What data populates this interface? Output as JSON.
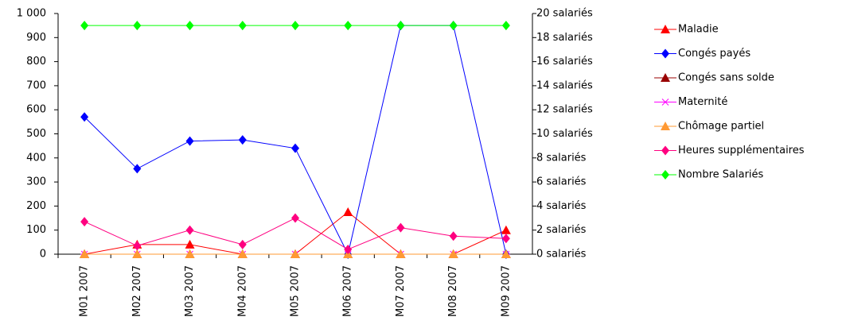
{
  "chart_data": {
    "type": "line",
    "categories": [
      "M01  2007",
      "M02  2007",
      "M03  2007",
      "M04  2007",
      "M05  2007",
      "M06  2007",
      "M07  2007",
      "M08  2007",
      "M09  2007"
    ],
    "ylim": [
      0,
      1000
    ],
    "yticks": [
      0,
      100,
      200,
      300,
      400,
      500,
      600,
      700,
      800,
      900,
      {
        "value": 1000,
        "label": "1 000"
      }
    ],
    "y2lim": [
      0,
      20
    ],
    "y2ticks": [
      {
        "value": 0,
        "label": "0 salariés"
      },
      {
        "value": 2,
        "label": "2 salariés"
      },
      {
        "value": 4,
        "label": "4 salariés"
      },
      {
        "value": 6,
        "label": "6 salariés"
      },
      {
        "value": 8,
        "label": "8 salariés"
      },
      {
        "value": 10,
        "label": "10 salariés"
      },
      {
        "value": 12,
        "label": "12 salariés"
      },
      {
        "value": 14,
        "label": "14 salariés"
      },
      {
        "value": 16,
        "label": "16 salariés"
      },
      {
        "value": 18,
        "label": "18 salariés"
      },
      {
        "value": 20,
        "label": "20 salariés"
      }
    ],
    "legend": "right",
    "series": [
      {
        "name": "Maladie",
        "color": "#ff0000",
        "marker": "triangle",
        "values": [
          0,
          40,
          40,
          0,
          0,
          175,
          0,
          0,
          100
        ]
      },
      {
        "name": "Congés payés",
        "color": "#0000ff",
        "marker": "diamond",
        "values": [
          570,
          355,
          470,
          475,
          440,
          0,
          950,
          950,
          0
        ]
      },
      {
        "name": "Congés sans solde",
        "color": "#990000",
        "marker": "triangle",
        "values": [
          0,
          0,
          0,
          0,
          0,
          0,
          0,
          0,
          0
        ]
      },
      {
        "name": "Maternité",
        "color": "#ff00ff",
        "marker": "cross",
        "values": [
          0,
          0,
          0,
          0,
          0,
          0,
          0,
          0,
          0
        ]
      },
      {
        "name": "Chômage  partiel",
        "color": "#ff9933",
        "marker": "triangle",
        "values": [
          0,
          0,
          0,
          0,
          0,
          0,
          0,
          0,
          0
        ]
      },
      {
        "name": "Heures  supplémentaires",
        "color": "#ff0080",
        "marker": "diamond",
        "values": [
          135,
          35,
          100,
          40,
          150,
          20,
          110,
          75,
          65
        ]
      },
      {
        "name": "Nombre  Salariés",
        "color": "#00ff00",
        "marker": "diamond",
        "axis": "y2",
        "values": [
          19,
          19,
          19,
          19,
          19,
          19,
          19,
          19,
          19
        ]
      }
    ]
  }
}
